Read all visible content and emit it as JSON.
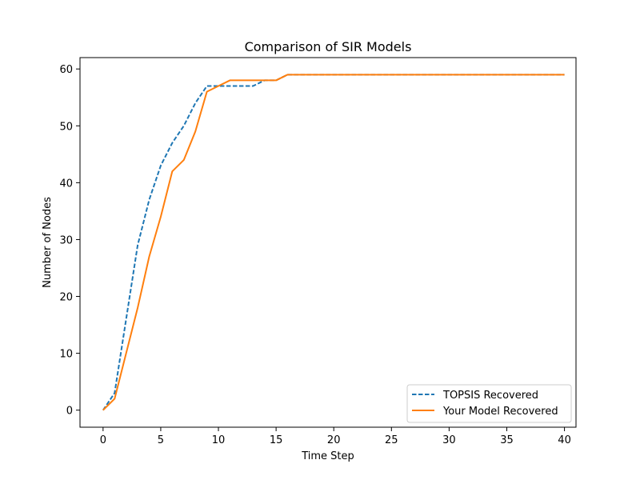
{
  "chart_data": {
    "type": "line",
    "title": "Comparison of SIR Models",
    "xlabel": "Time Step",
    "ylabel": "Number of Nodes",
    "xlim": [
      -2,
      41
    ],
    "ylim": [
      -3,
      62
    ],
    "xticks": [
      0,
      5,
      10,
      15,
      20,
      25,
      30,
      35,
      40
    ],
    "yticks": [
      0,
      10,
      20,
      30,
      40,
      50,
      60
    ],
    "grid": false,
    "legend_position": "lower-right",
    "series": [
      {
        "name": "TOPSIS Recovered",
        "color": "#1f77b4",
        "style": "dashed",
        "x": [
          0,
          1,
          2,
          3,
          4,
          5,
          6,
          7,
          8,
          9,
          10,
          11,
          12,
          13,
          14,
          15,
          16,
          17,
          18,
          19,
          20,
          21,
          22,
          23,
          24,
          25,
          26,
          27,
          28,
          29,
          30,
          31,
          32,
          33,
          34,
          35,
          36,
          37,
          38,
          39,
          40
        ],
        "y": [
          0,
          3,
          16,
          29,
          37,
          43,
          47,
          50,
          54,
          57,
          57,
          57,
          57,
          57,
          58,
          58,
          59,
          59,
          59,
          59,
          59,
          59,
          59,
          59,
          59,
          59,
          59,
          59,
          59,
          59,
          59,
          59,
          59,
          59,
          59,
          59,
          59,
          59,
          59,
          59,
          59
        ]
      },
      {
        "name": "Your Model Recovered",
        "color": "#ff7f0e",
        "style": "solid",
        "x": [
          0,
          1,
          2,
          3,
          4,
          5,
          6,
          7,
          8,
          9,
          10,
          11,
          12,
          13,
          14,
          15,
          16,
          17,
          18,
          19,
          20,
          21,
          22,
          23,
          24,
          25,
          26,
          27,
          28,
          29,
          30,
          31,
          32,
          33,
          34,
          35,
          36,
          37,
          38,
          39,
          40
        ],
        "y": [
          0,
          2,
          10,
          18,
          27,
          34,
          42,
          44,
          49,
          56,
          57,
          58,
          58,
          58,
          58,
          58,
          59,
          59,
          59,
          59,
          59,
          59,
          59,
          59,
          59,
          59,
          59,
          59,
          59,
          59,
          59,
          59,
          59,
          59,
          59,
          59,
          59,
          59,
          59,
          59,
          59
        ]
      }
    ]
  }
}
